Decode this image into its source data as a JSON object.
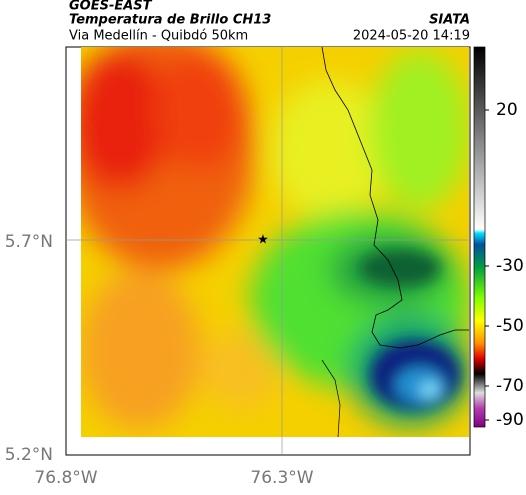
{
  "header": {
    "title": "GOES-EAST",
    "subtitle": "Temperatura de Brillo CH13",
    "source": "SIATA",
    "region": "Via Medellín - Quibdó 50km",
    "timestamp": "2024-05-20 14:19"
  },
  "axes": {
    "lat_labels": [
      "5.7°N",
      "5.2°N"
    ],
    "lon_labels": [
      "76.8°W",
      "76.3°W"
    ]
  },
  "colorbar": {
    "tick_labels": [
      "20",
      "-30",
      "-50",
      "-70",
      "-90"
    ]
  }
}
